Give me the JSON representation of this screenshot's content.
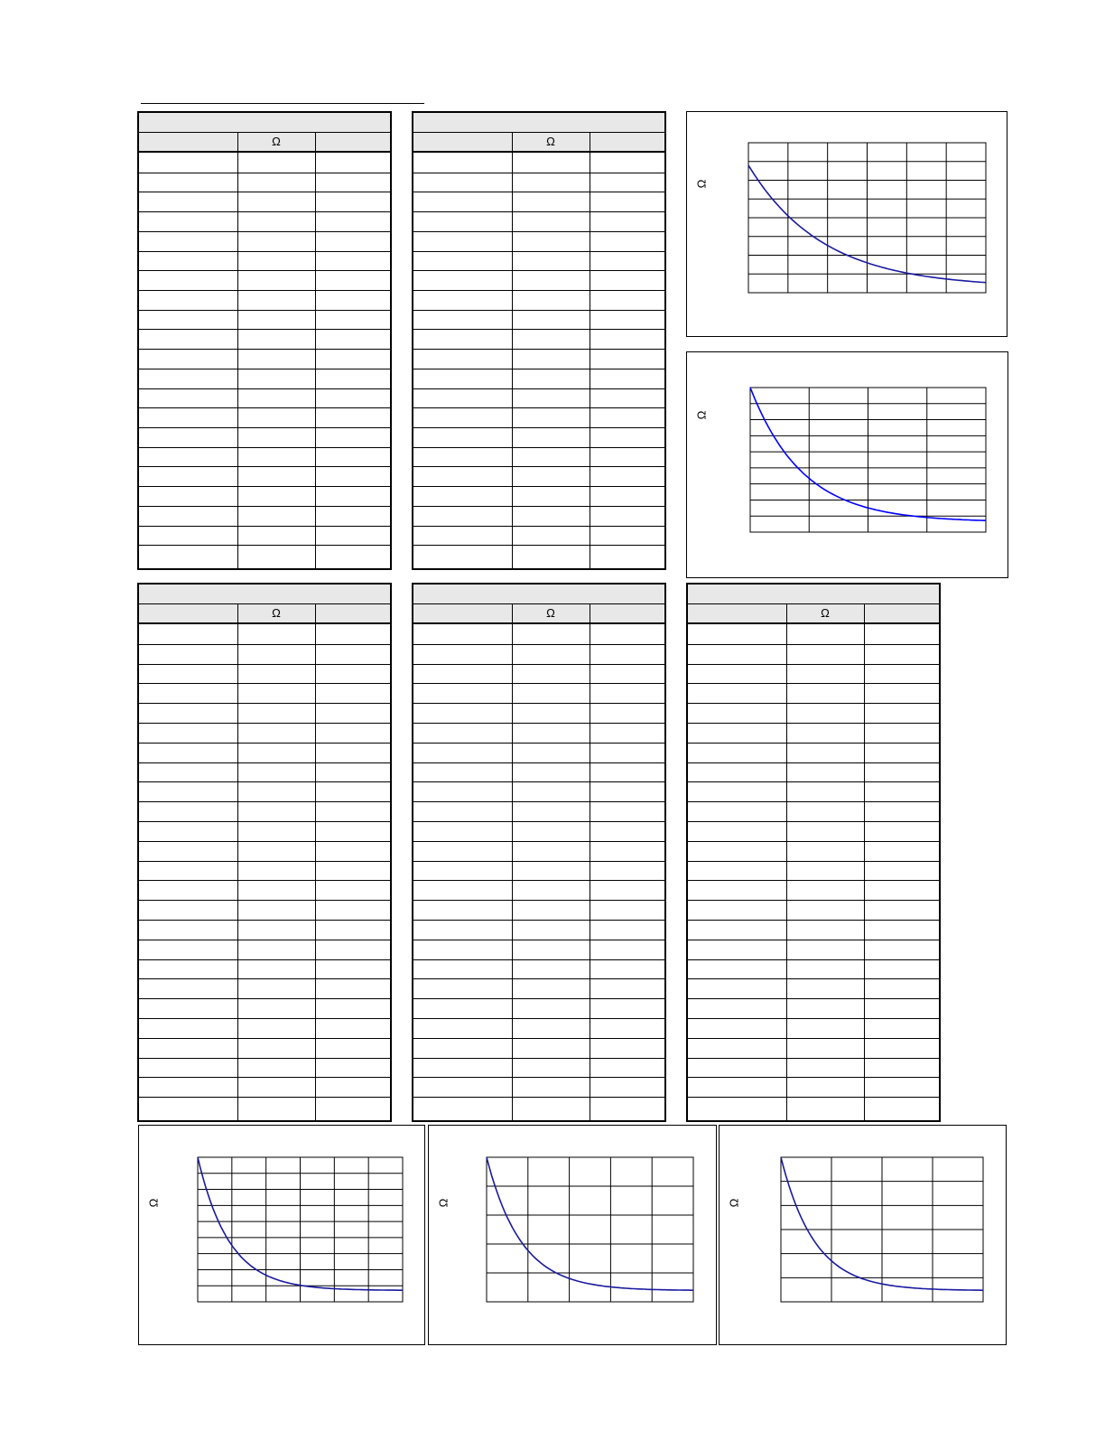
{
  "document": {
    "page_rule": ""
  },
  "tables": [
    {
      "id": "table-1",
      "title": "",
      "headers": [
        "",
        "Ω",
        ""
      ],
      "rows": 21
    },
    {
      "id": "table-2",
      "title": "",
      "headers": [
        "",
        "Ω",
        ""
      ],
      "rows": 21
    },
    {
      "id": "table-3",
      "title": "",
      "headers": [
        "",
        "Ω",
        ""
      ],
      "rows": 25
    },
    {
      "id": "table-4",
      "title": "",
      "headers": [
        "",
        "Ω",
        ""
      ],
      "rows": 25
    },
    {
      "id": "table-5",
      "title": "",
      "headers": [
        "",
        "Ω",
        ""
      ],
      "rows": 25
    }
  ],
  "chart_data": [
    {
      "type": "line",
      "title": "",
      "xlabel": "",
      "ylabel": "Ω",
      "x_divisions": 6,
      "y_divisions": 8,
      "grid": true,
      "line_color": "#1a1aa0",
      "decay": 3.2
    },
    {
      "type": "line",
      "title": "",
      "xlabel": "",
      "ylabel": "Ω",
      "x_divisions": 4,
      "y_divisions": 9,
      "grid": true,
      "line_color": "#0000ff",
      "decay": 4.5
    },
    {
      "type": "line",
      "title": "",
      "xlabel": "",
      "ylabel": "Ω",
      "x_divisions": 6,
      "y_divisions": 9,
      "grid": true,
      "line_color": "#1a1aa0",
      "decay": 6.5
    },
    {
      "type": "line",
      "title": "",
      "xlabel": "",
      "ylabel": "Ω",
      "x_divisions": 5,
      "y_divisions": 5,
      "grid": true,
      "line_color": "#1a1aa0",
      "decay": 6.0
    },
    {
      "type": "line",
      "title": "",
      "xlabel": "",
      "ylabel": "Ω",
      "x_divisions": 4,
      "y_divisions": 6,
      "grid": true,
      "line_color": "#1a1aa0",
      "decay": 6.0
    }
  ]
}
